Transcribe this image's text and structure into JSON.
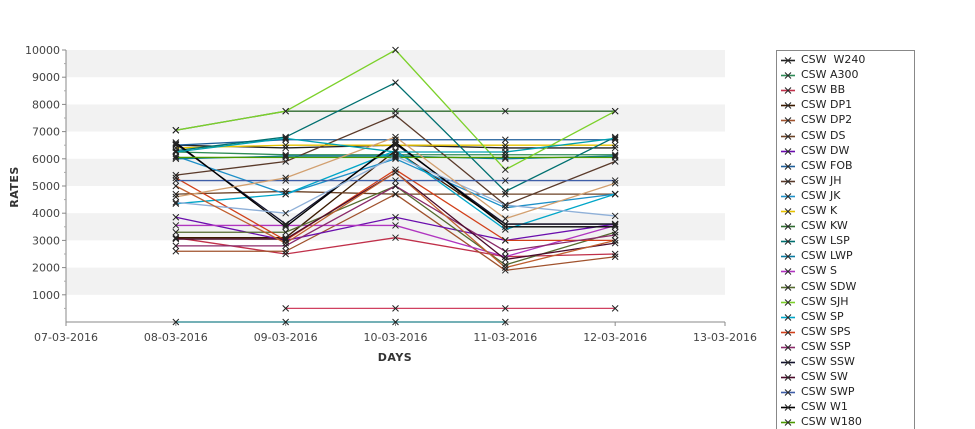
{
  "chart_data": {
    "type": "line",
    "title": "",
    "xlabel": "DAYS",
    "ylabel": "RATES",
    "categories": [
      "07-03-2016",
      "08-03-2016",
      "09-03-2016",
      "10-03-2016",
      "11-03-2016",
      "12-03-2016",
      "13-03-2016"
    ],
    "ylim": [
      0,
      10000
    ],
    "yticks": [
      1000,
      2000,
      3000,
      4000,
      5000,
      6000,
      7000,
      8000,
      9000,
      10000
    ],
    "grid": "alternating horizontal bands",
    "legend_position": "right",
    "series": [
      {
        "name": "CSW  W240",
        "color": "#222222",
        "values": [
          null,
          6500,
          6400,
          6500,
          6400,
          6400,
          null
        ]
      },
      {
        "name": "CSW A300",
        "color": "#2e8b57",
        "values": [
          null,
          6250,
          6150,
          6150,
          6150,
          6150,
          null
        ]
      },
      {
        "name": "CSW BB",
        "color": "#c0304a",
        "values": [
          null,
          3100,
          2500,
          3100,
          2400,
          2500,
          null
        ]
      },
      {
        "name": "CSW DP1",
        "color": "#3a1a00",
        "values": [
          null,
          3100,
          3100,
          6300,
          3600,
          3600,
          null
        ]
      },
      {
        "name": "CSW DP2",
        "color": "#a0522d",
        "values": [
          null,
          2600,
          2600,
          4700,
          1900,
          2400,
          null
        ]
      },
      {
        "name": "CSW DS",
        "color": "#6b4226",
        "values": [
          null,
          4700,
          4800,
          4700,
          4700,
          4700,
          null
        ]
      },
      {
        "name": "CSW DW",
        "color": "#6a0dad",
        "values": [
          null,
          3850,
          3000,
          3850,
          3000,
          3600,
          null
        ]
      },
      {
        "name": "CSW FOB",
        "color": "#1f5f9a",
        "values": [
          null,
          6500,
          6700,
          6700,
          6700,
          6700,
          null
        ]
      },
      {
        "name": "CSW JH",
        "color": "#5a3a2a",
        "values": [
          null,
          5400,
          5900,
          7600,
          4300,
          5900,
          null
        ]
      },
      {
        "name": "CSW JK",
        "color": "#1e90c8",
        "values": [
          null,
          6100,
          4700,
          6000,
          4200,
          4700,
          null
        ]
      },
      {
        "name": "CSW K",
        "color": "#e6c200",
        "values": [
          null,
          6400,
          6500,
          6500,
          6500,
          6500,
          null
        ]
      },
      {
        "name": "CSW KW",
        "color": "#2f6b2f",
        "values": [
          null,
          7050,
          7750,
          7750,
          7750,
          7750,
          null
        ]
      },
      {
        "name": "CSW LSP",
        "color": "#007070",
        "values": [
          null,
          6300,
          6800,
          8800,
          4800,
          6800,
          null
        ]
      },
      {
        "name": "CSW LWP",
        "color": "#0a7aa0",
        "values": [
          null,
          6000,
          6100,
          6100,
          6000,
          6100,
          null
        ]
      },
      {
        "name": "CSW S",
        "color": "#b035c0",
        "values": [
          null,
          3550,
          3550,
          3550,
          2400,
          3550,
          null
        ]
      },
      {
        "name": "CSW SDW",
        "color": "#556b2f",
        "values": [
          null,
          3300,
          3300,
          5000,
          2100,
          3300,
          null
        ]
      },
      {
        "name": "CSW SJH",
        "color": "#7cd12a",
        "values": [
          null,
          7050,
          7750,
          10000,
          5600,
          7750,
          null
        ]
      },
      {
        "name": "CSW SP",
        "color": "#00a6c8",
        "values": [
          null,
          4350,
          4700,
          6300,
          3400,
          4700,
          null
        ]
      },
      {
        "name": "CSW SPS",
        "color": "#d2401a",
        "values": [
          null,
          5300,
          3000,
          5600,
          3000,
          3000,
          null
        ]
      },
      {
        "name": "CSW SSP",
        "color": "#8a2a6a",
        "values": [
          null,
          2800,
          2800,
          5000,
          2600,
          3200,
          null
        ]
      },
      {
        "name": "CSW SSW",
        "color": "#14142e",
        "values": [
          null,
          6550,
          3600,
          6550,
          3600,
          3600,
          null
        ]
      },
      {
        "name": "CSW SW",
        "color": "#4b0a2a",
        "values": [
          null,
          3050,
          3050,
          5500,
          2300,
          2900,
          null
        ]
      },
      {
        "name": "CSW SWP",
        "color": "#3e5ea8",
        "values": [
          null,
          5200,
          5200,
          5200,
          5200,
          5200,
          null
        ]
      },
      {
        "name": "CSW W1",
        "color": "#000000",
        "values": [
          null,
          6600,
          3500,
          6600,
          3500,
          3500,
          null
        ]
      },
      {
        "name": "CSW W180",
        "color": "#4c9a00",
        "values": [
          null,
          6050,
          6050,
          6050,
          6050,
          6050,
          null
        ]
      },
      {
        "name": "",
        "color": "#8fb0d8",
        "values": [
          null,
          4400,
          4000,
          6100,
          4300,
          3900,
          null
        ]
      },
      {
        "name": "",
        "color": "#d2a070",
        "values": [
          null,
          4600,
          5300,
          6800,
          3800,
          5100,
          null
        ]
      },
      {
        "name": "",
        "color": "#00a0b0",
        "values": [
          null,
          6250,
          6750,
          6250,
          6250,
          6750,
          null
        ]
      },
      {
        "name": "",
        "color": "#c06030",
        "values": [
          null,
          5000,
          2900,
          5500,
          2000,
          3000,
          null
        ]
      },
      {
        "name": "",
        "color": "#d04060",
        "values": [
          null,
          null,
          500,
          500,
          500,
          500,
          null
        ]
      },
      {
        "name": "",
        "color": "#20808a",
        "values": [
          null,
          0,
          0,
          0,
          0,
          null,
          null
        ]
      }
    ]
  }
}
